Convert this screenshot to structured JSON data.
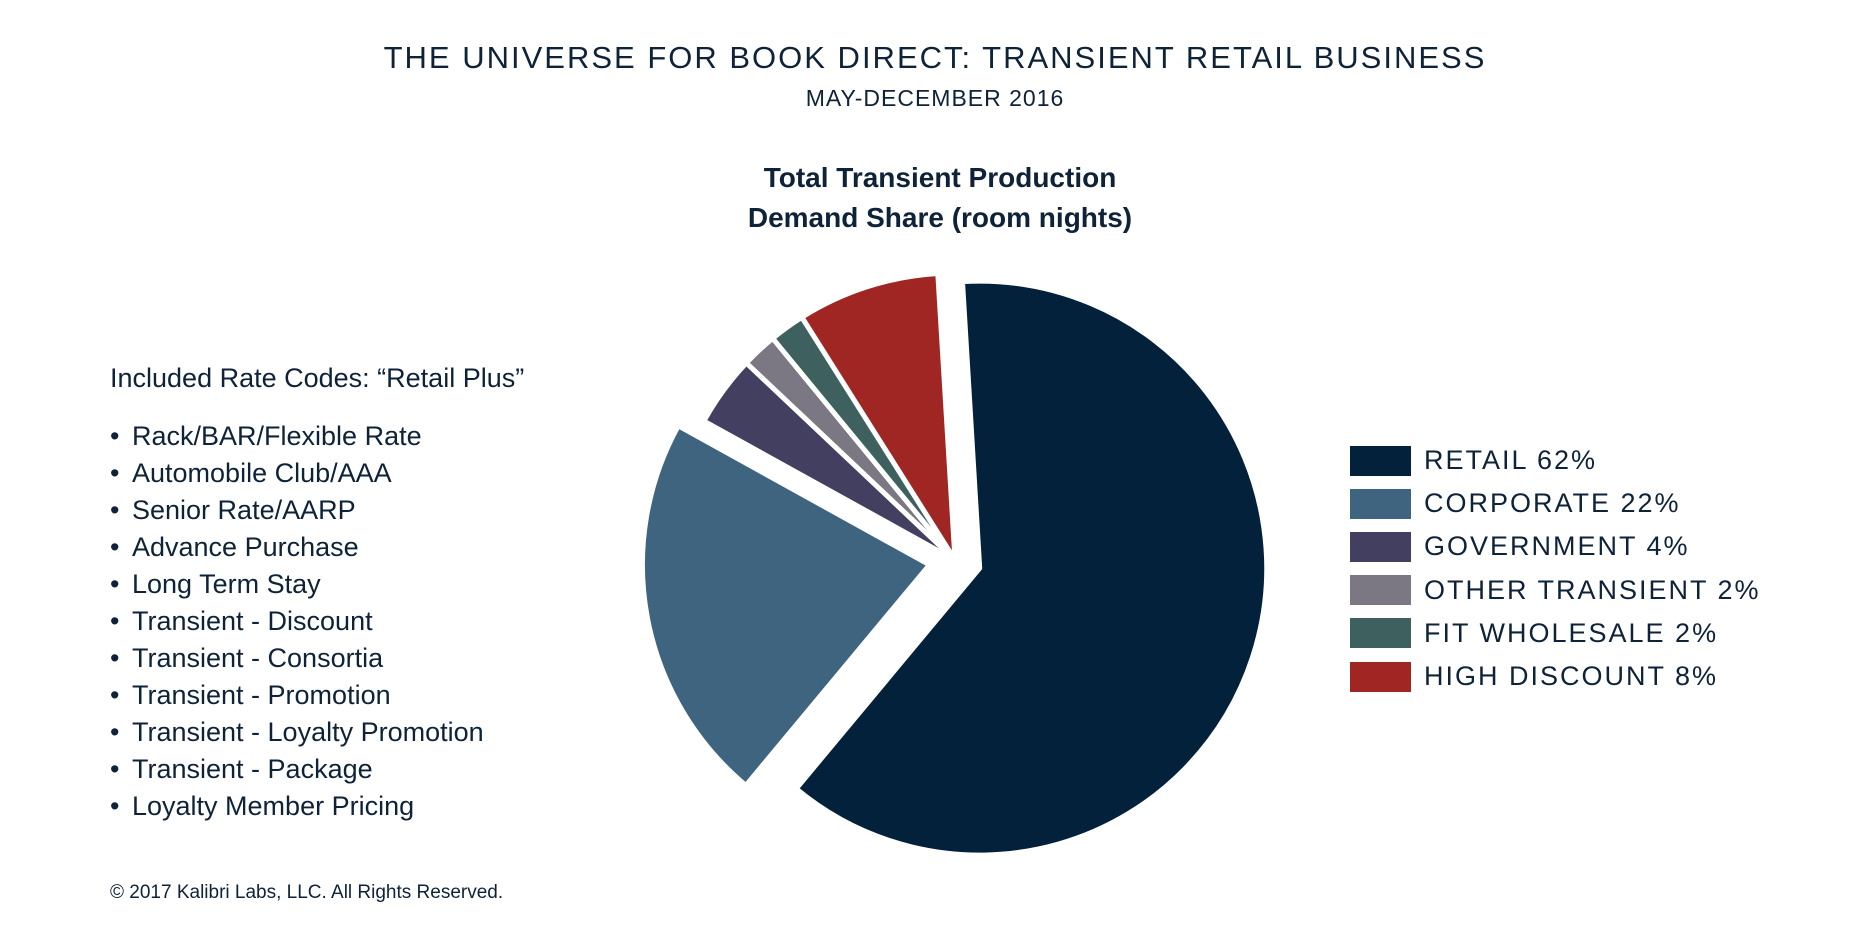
{
  "header": {
    "title": "THE UNIVERSE FOR BOOK DIRECT: TRANSIENT RETAIL BUSINESS",
    "subtitle": "MAY-DECEMBER 2016"
  },
  "rate_codes": {
    "heading": "Included Rate Codes: “Retail Plus”",
    "bullet": "•",
    "items": [
      "Rack/BAR/Flexible Rate",
      "Automobile Club/AAA",
      "Senior Rate/AARP",
      "Advance Purchase",
      "Long Term Stay",
      "Transient - Discount",
      "Transient - Consortia",
      "Transient - Promotion",
      "Transient - Loyalty Promotion",
      "Transient - Package",
      "Loyalty Member Pricing"
    ]
  },
  "chart_data": {
    "type": "pie",
    "title": "Total Transient Production",
    "subtitle": "Demand Share (room nights)",
    "legend_position": "right",
    "slices": [
      {
        "label": "RETAIL 62%",
        "category": "RETAIL",
        "value": 62,
        "color": "#03213a",
        "exploded": true
      },
      {
        "label": "CORPORATE 22%",
        "category": "CORPORATE",
        "value": 22,
        "color": "#3e647f",
        "exploded": true
      },
      {
        "label": "GOVERNMENT 4%",
        "category": "GOVERNMENT",
        "value": 4,
        "color": "#433f60",
        "exploded": false
      },
      {
        "label": "OTHER TRANSIENT 2%",
        "category": "OTHER TRANSIENT",
        "value": 2,
        "color": "#7b7883",
        "exploded": false
      },
      {
        "label": "FIT WHOLESALE 2%",
        "category": "FIT WHOLESALE",
        "value": 2,
        "color": "#3e615f",
        "exploded": false
      },
      {
        "label": "HIGH DISCOUNT 8%",
        "category": "HIGH DISCOUNT",
        "value": 8,
        "color": "#a02624",
        "exploded": false
      }
    ]
  },
  "footer": {
    "copyright": "© 2017 Kalibri Labs, LLC. All Rights Reserved."
  }
}
